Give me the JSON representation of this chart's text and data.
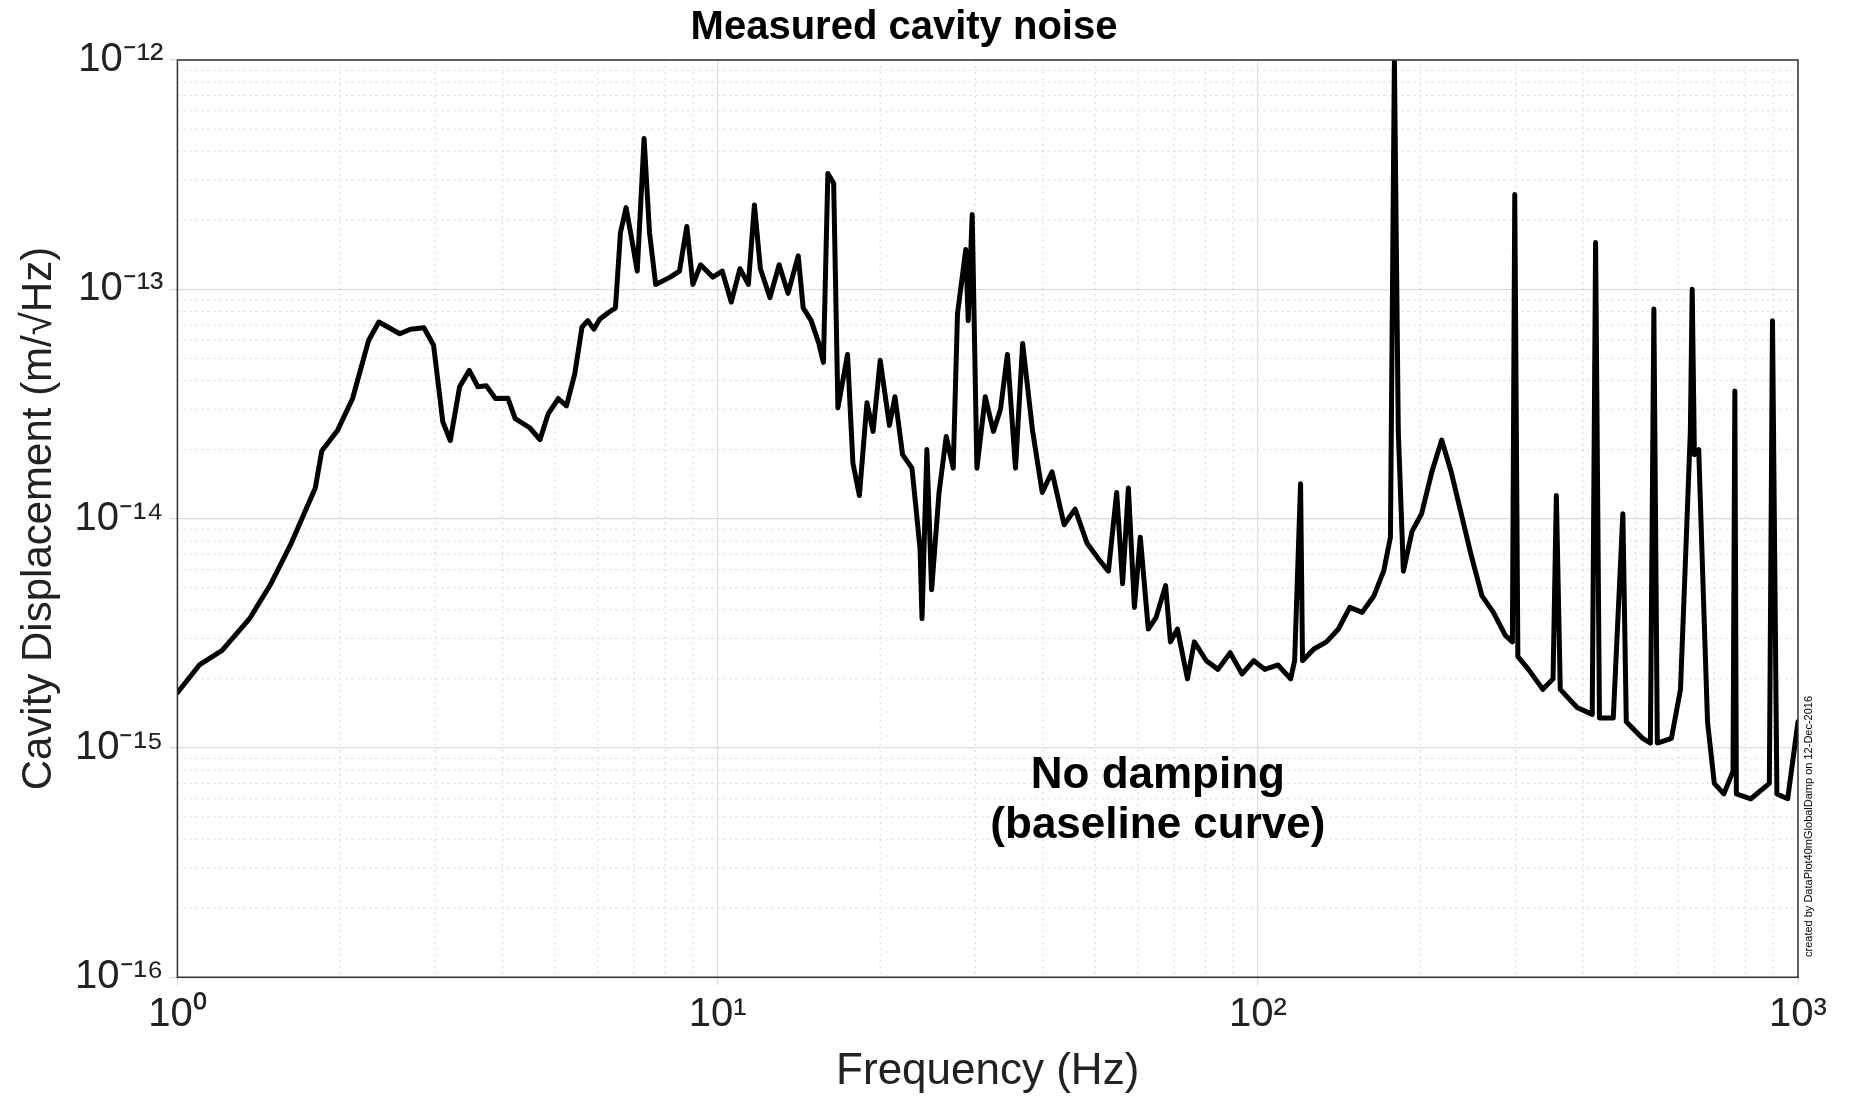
{
  "chart_data": {
    "type": "line",
    "title": "Measured cavity noise",
    "xlabel": "Frequency (Hz)",
    "ylabel": "Cavity Displacement (m/√Hz)",
    "annotations": [
      "No damping\n(baseline curve)",
      "created by DataPlot40mGlobalDamp on 12-Dec-2016"
    ],
    "log": "xy",
    "grid": true,
    "legend": false,
    "marker": "none",
    "line_style": "solid",
    "xlim": [
      1,
      1000
    ],
    "ylim": [
      1e-16,
      1e-12
    ],
    "xticks": [
      {
        "value": 1,
        "label": "10⁰"
      },
      {
        "value": 10,
        "label": "10¹"
      },
      {
        "value": 100,
        "label": "10²"
      },
      {
        "value": 1000,
        "label": "10³"
      }
    ],
    "yticks": [
      {
        "value": 1e-16,
        "label": "10⁻¹⁶"
      },
      {
        "value": 1e-15,
        "label": "10⁻¹⁵"
      },
      {
        "value": 1e-14,
        "label": "10⁻¹⁴"
      },
      {
        "value": 1e-13,
        "label": "10⁻¹³"
      },
      {
        "value": 1e-12,
        "label": "10⁻¹²"
      }
    ],
    "x": [
      1,
      1.1,
      1.21,
      1.36,
      1.49,
      1.62,
      1.8,
      1.85,
      1.98,
      2.11,
      2.26,
      2.36,
      2.58,
      2.7,
      2.86,
      2.98,
      3.1,
      3.2,
      3.33,
      3.47,
      3.6,
      3.73,
      3.88,
      4.09,
      4.22,
      4.49,
      4.69,
      4.86,
      5.07,
      5.25,
      5.44,
      5.61,
      5.75,
      5.9,
      6.05,
      6.27,
      6.47,
      6.61,
      6.77,
      6.95,
      7.1,
      7.31,
      7.48,
      7.68,
      8.17,
      8.5,
      8.77,
      9.0,
      9.3,
      9.8,
      10.2,
      10.6,
      11.0,
      11.4,
      11.7,
      12.0,
      12.5,
      13.0,
      13.5,
      14.1,
      14.4,
      14.9,
      15.4,
      15.7,
      16.0,
      16.4,
      16.7,
      17.4,
      17.8,
      18.3,
      18.9,
      19.4,
      20.0,
      20.8,
      21.3,
      22.0,
      22.9,
      23.7,
      23.9,
      24.4,
      24.9,
      25.7,
      26.5,
      27.3,
      27.8,
      28.8,
      29.1,
      29.6,
      30.2,
      31.3,
      32.4,
      33.4,
      34.4,
      35.6,
      36.7,
      38.3,
      39.9,
      41.6,
      43.8,
      45.9,
      48.3,
      50.9,
      52.9,
      54.8,
      56.2,
      57.6,
      59.1,
      60.6,
      62.7,
      64.8,
      67.5,
      68.9,
      71.0,
      74.1,
      76.3,
      80.3,
      84.4,
      88.9,
      93.5,
      98.3,
      103,
      109,
      115,
      117,
      120,
      121,
      127,
      134,
      141,
      148,
      156,
      164,
      171,
      176,
      179,
      182,
      186,
      193,
      201,
      210,
      219,
      228,
      238,
      248,
      260,
      273,
      287,
      296,
      299,
      303,
      317,
      337,
      352,
      357,
      363,
      390,
      416,
      422,
      429,
      455,
      474,
      481,
      516,
      533,
      541,
      549,
      583,
      606,
      619,
      632,
      637,
      643,
      655,
      667,
      680,
      700,
      729,
      758,
      764,
      769,
      818,
      885,
      897,
      914,
      957,
      1000
    ],
    "series": [
      {
        "color": "#000000",
        "values": [
          1.74e-15,
          2.31e-15,
          2.66e-15,
          3.66e-15,
          5.2e-15,
          7.7e-15,
          1.36e-14,
          1.97e-14,
          2.43e-14,
          3.34e-14,
          6e-14,
          7.2e-14,
          6.4e-14,
          6.7e-14,
          6.8e-14,
          5.7e-14,
          2.64e-14,
          2.19e-14,
          3.76e-14,
          4.43e-14,
          3.76e-14,
          3.8e-14,
          3.34e-14,
          3.35e-14,
          2.73e-14,
          2.49e-14,
          2.21e-14,
          2.87e-14,
          3.34e-14,
          3.1e-14,
          4.28e-14,
          6.84e-14,
          7.3e-14,
          6.7e-14,
          7.4e-14,
          7.9e-14,
          8.3e-14,
          1.77e-13,
          2.27e-13,
          1.61e-13,
          1.2e-13,
          4.55e-13,
          1.77e-13,
          1.05e-13,
          1.13e-13,
          1.2e-13,
          1.88e-13,
          1.05e-13,
          1.28e-13,
          1.13e-13,
          1.2e-13,
          8.8e-14,
          1.23e-13,
          1.05e-13,
          2.33e-13,
          1.23e-13,
          9.2e-14,
          1.28e-13,
          9.6e-14,
          1.4e-13,
          8.3e-14,
          7.3e-14,
          5.8e-14,
          4.8e-14,
          3.2e-13,
          2.9e-13,
          3.04e-14,
          5.2e-14,
          1.75e-14,
          1.26e-14,
          3.2e-14,
          2.4e-14,
          4.9e-14,
          2.55e-14,
          3.4e-14,
          1.9e-14,
          1.66e-14,
          7.4e-15,
          3.66e-15,
          2e-14,
          4.9e-15,
          1.3e-14,
          2.28e-14,
          1.66e-14,
          7.8e-14,
          1.49e-13,
          7.3e-14,
          2.12e-13,
          1.66e-14,
          3.4e-14,
          2.4e-14,
          3e-14,
          5.2e-14,
          1.66e-14,
          5.8e-14,
          2.4e-14,
          1.3e-14,
          1.6e-14,
          9.4e-15,
          1.1e-14,
          7.8e-15,
          6.6e-15,
          5.9e-15,
          1.3e-14,
          5.2e-15,
          1.36e-14,
          4.1e-15,
          8.3e-15,
          3.3e-15,
          3.7e-15,
          5.1e-15,
          2.9e-15,
          3.3e-15,
          2e-15,
          2.9e-15,
          2.4e-15,
          2.2e-15,
          2.6e-15,
          2.1e-15,
          2.4e-15,
          2.2e-15,
          2.3e-15,
          2e-15,
          2.4e-15,
          1.42e-14,
          2.4e-15,
          2.7e-15,
          2.9e-15,
          3.3e-15,
          4.1e-15,
          3.9e-15,
          4.6e-15,
          5.9e-15,
          8.3e-15,
          1e-12,
          2.4e-14,
          5.9e-15,
          8.8e-15,
          1.05e-14,
          1.6e-14,
          2.2e-14,
          1.6e-14,
          1.05e-14,
          7e-15,
          4.6e-15,
          3.9e-15,
          3.1e-15,
          2.9e-15,
          2.59e-13,
          2.5e-15,
          2.2e-15,
          1.8e-15,
          2e-15,
          1.26e-14,
          1.8e-15,
          1.5e-15,
          1.4e-15,
          1.6e-13,
          1.35e-15,
          1.35e-15,
          1.05e-14,
          1.3e-15,
          1.1e-15,
          1.05e-15,
          8.2e-14,
          1.05e-15,
          1.1e-15,
          1.8e-15,
          6.6e-15,
          2.4e-14,
          1e-13,
          1.9e-14,
          2e-14,
          5.2e-15,
          1.3e-15,
          7e-16,
          6.3e-16,
          7.9e-16,
          3.6e-14,
          6.3e-16,
          6e-16,
          7e-16,
          7.3e-14,
          6.3e-16,
          6e-16,
          1.3e-15
        ]
      }
    ]
  }
}
